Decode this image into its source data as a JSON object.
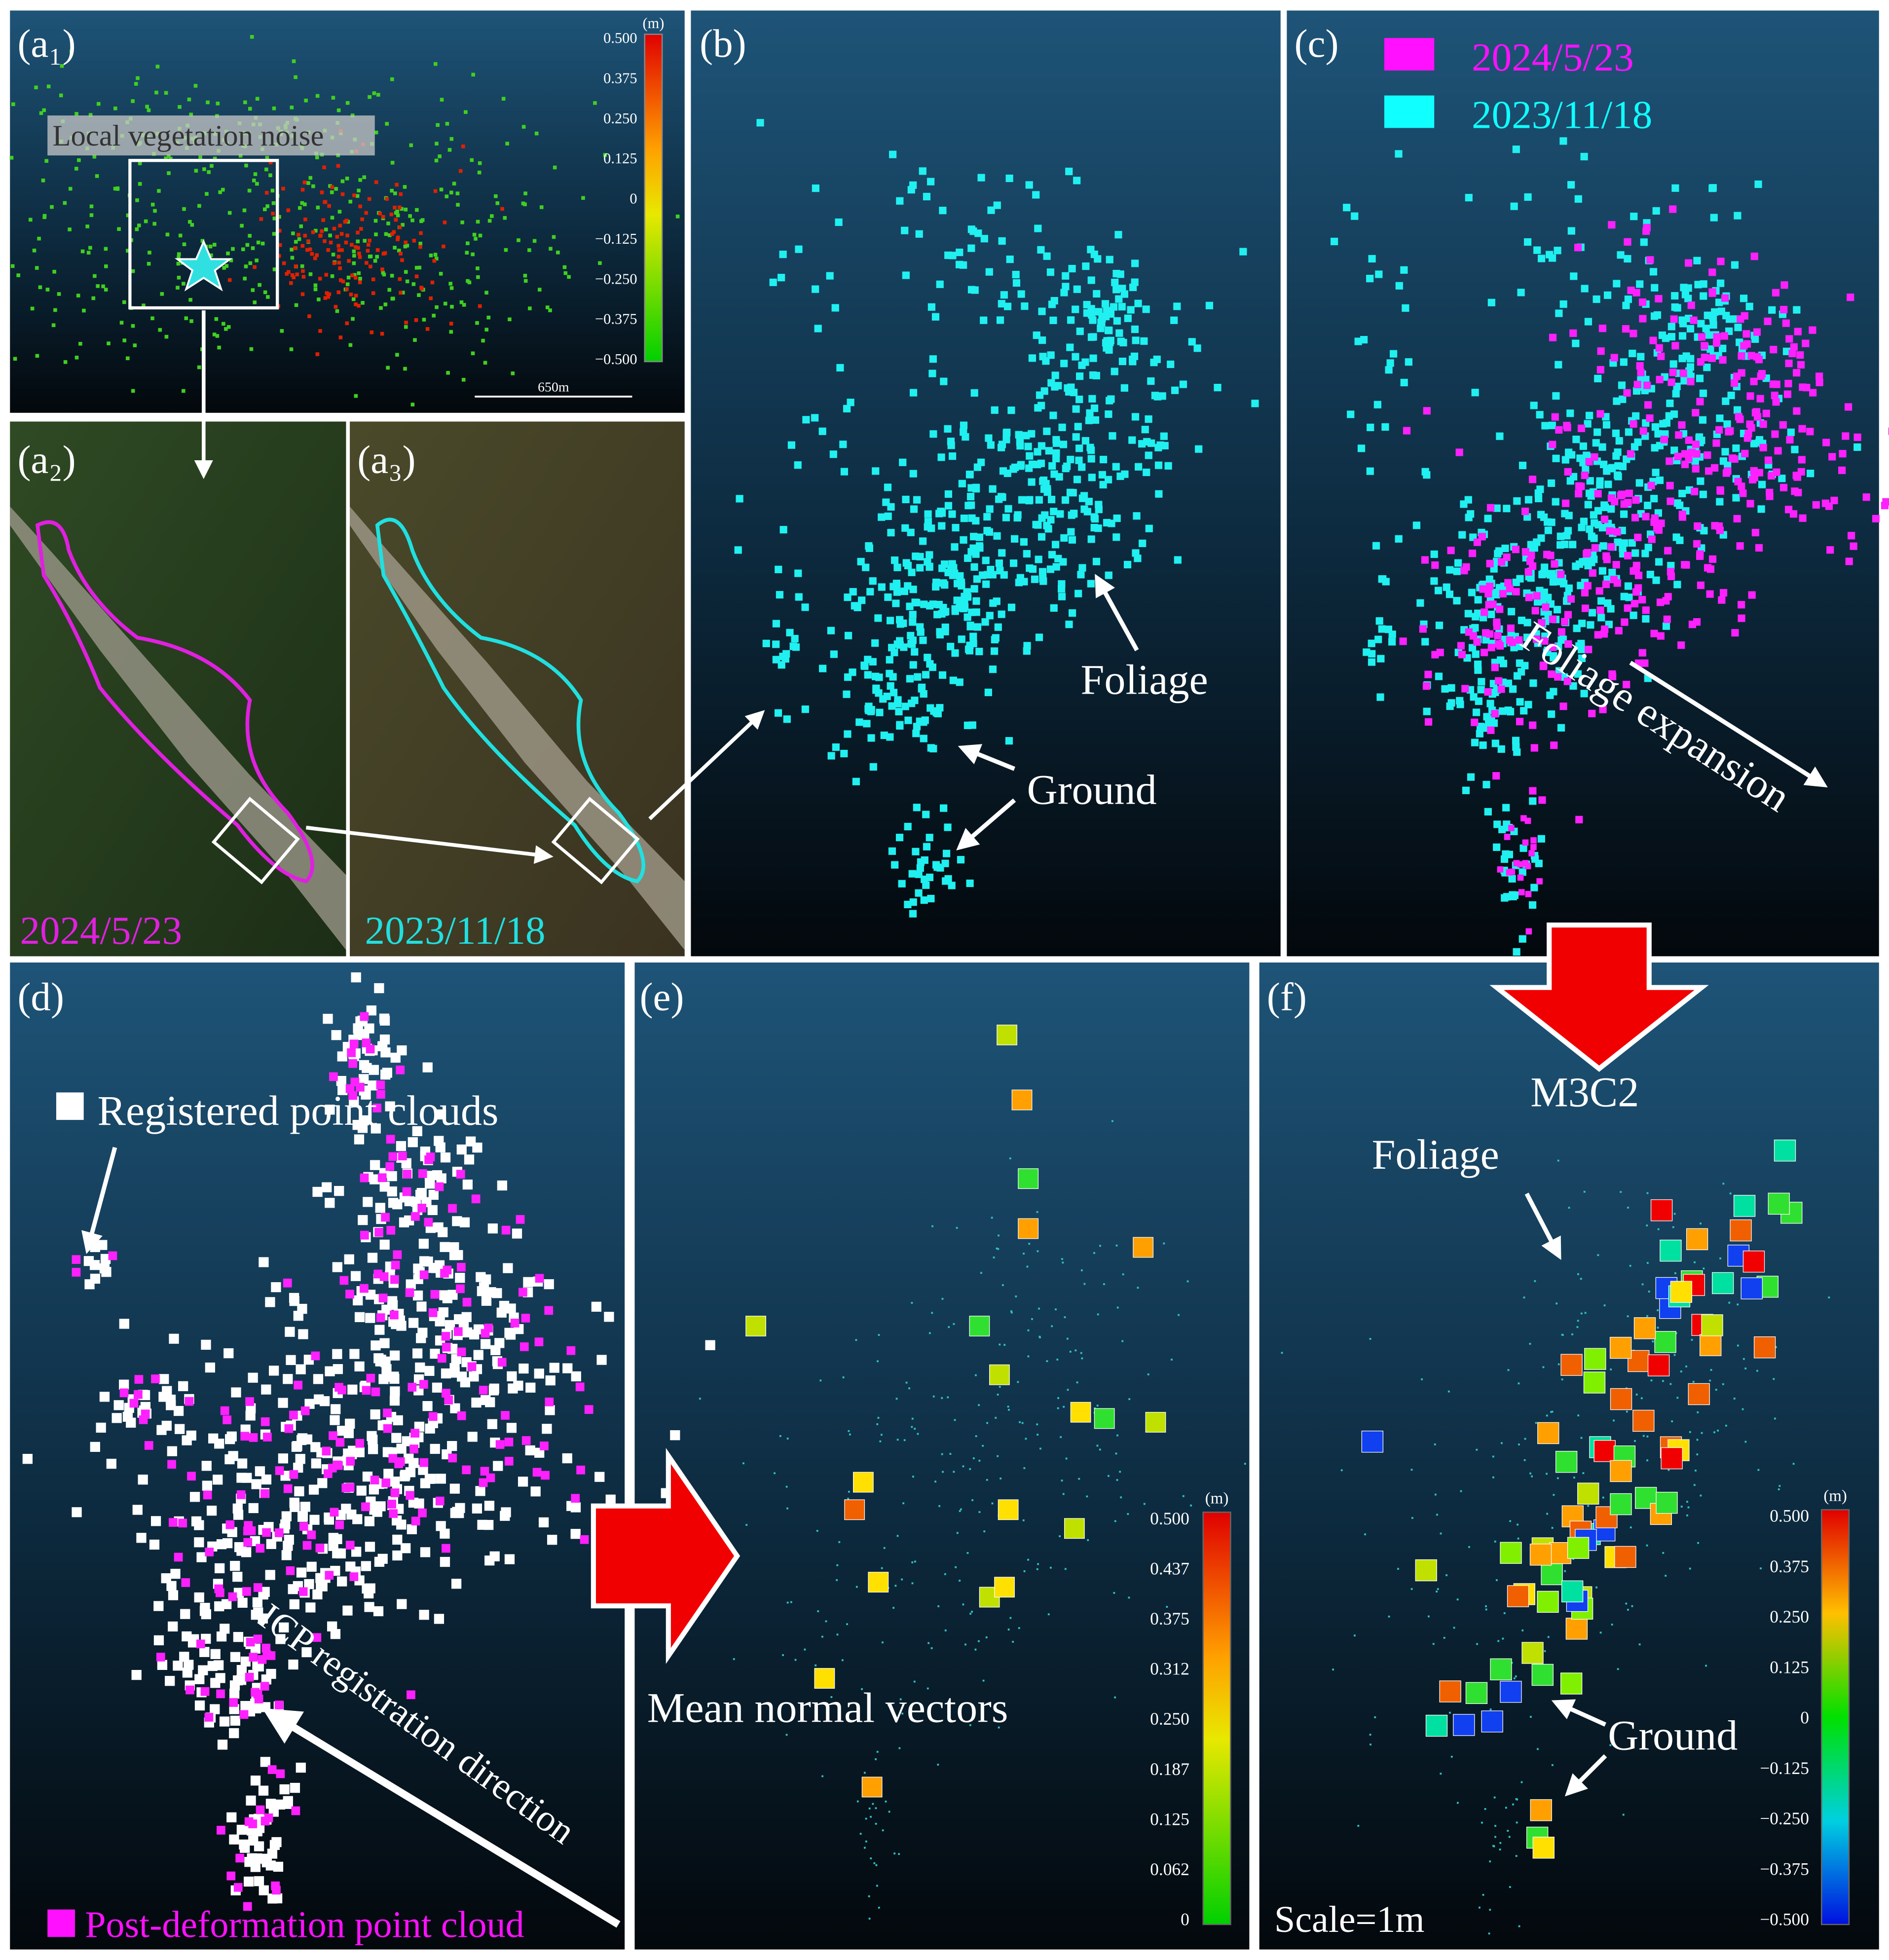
{
  "panels": {
    "a1": {
      "label": "(a₁)",
      "note": "Local vegetation noise",
      "unit": "(m)",
      "ticks": [
        "0.500",
        "0.375",
        "0.250",
        "0.125",
        "0",
        "−0.125",
        "−0.250",
        "−0.375",
        "−0.500"
      ],
      "scale": "650m"
    },
    "a2": {
      "label": "(a₂)",
      "date": "2024/5/23"
    },
    "a3": {
      "label": "(a₃)",
      "date": "2023/11/18"
    },
    "b": {
      "label": "(b)",
      "foliage": "Foliage",
      "ground": "Ground"
    },
    "c": {
      "label": "(c)",
      "legend": [
        "2024/5/23",
        "2023/11/18"
      ],
      "note": "Foliage expansion"
    },
    "d": {
      "label": "(d)",
      "registered": "Registered point clouds",
      "direction": "ICP registration direction",
      "post": "Post-deformation point cloud"
    },
    "e": {
      "label": "(e)",
      "note": "Mean normal vectors",
      "unit": "(m)",
      "ticks": [
        "0.500",
        "0.437",
        "0.375",
        "0.312",
        "0.250",
        "0.187",
        "0.125",
        "0.062",
        "0"
      ]
    },
    "f": {
      "label": "(f)",
      "method": "M3C2",
      "foliage": "Foliage",
      "ground": "Ground",
      "scale": "Scale=1m",
      "unit": "(m)",
      "ticks": [
        "0.500",
        "0.375",
        "0.250",
        "0.125",
        "0",
        "−0.125",
        "−0.250",
        "−0.375",
        "−0.500"
      ]
    }
  }
}
